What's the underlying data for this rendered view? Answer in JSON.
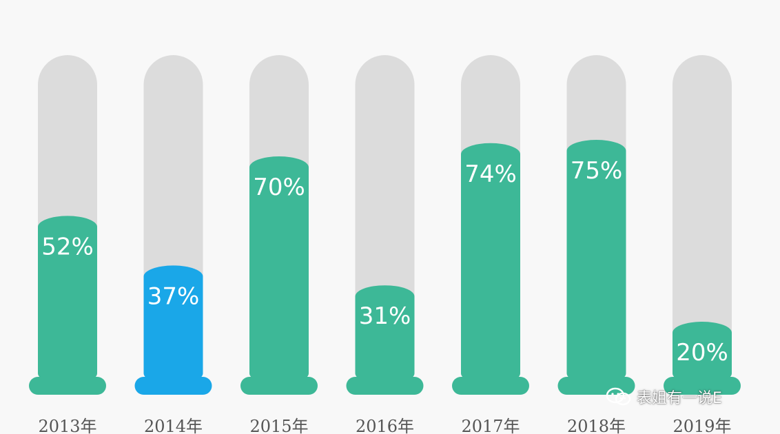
{
  "chart_data": {
    "type": "bar",
    "categories": [
      "2013年",
      "2014年",
      "2015年",
      "2016年",
      "2017年",
      "2018年",
      "2019年"
    ],
    "values": [
      52,
      37,
      70,
      31,
      74,
      75,
      20
    ],
    "value_labels": [
      "52%",
      "37%",
      "70%",
      "31%",
      "74%",
      "75%",
      "20%"
    ],
    "ylim": [
      0,
      100
    ],
    "highlight_index": 1,
    "colors": {
      "fill": "#3db897",
      "highlight": "#1aa7e8",
      "track": "#dcdcdc",
      "label": "#ffffff",
      "axis_text": "#555555"
    }
  },
  "watermark": {
    "text": "表姐有一说E",
    "icon": "wechat-icon"
  }
}
